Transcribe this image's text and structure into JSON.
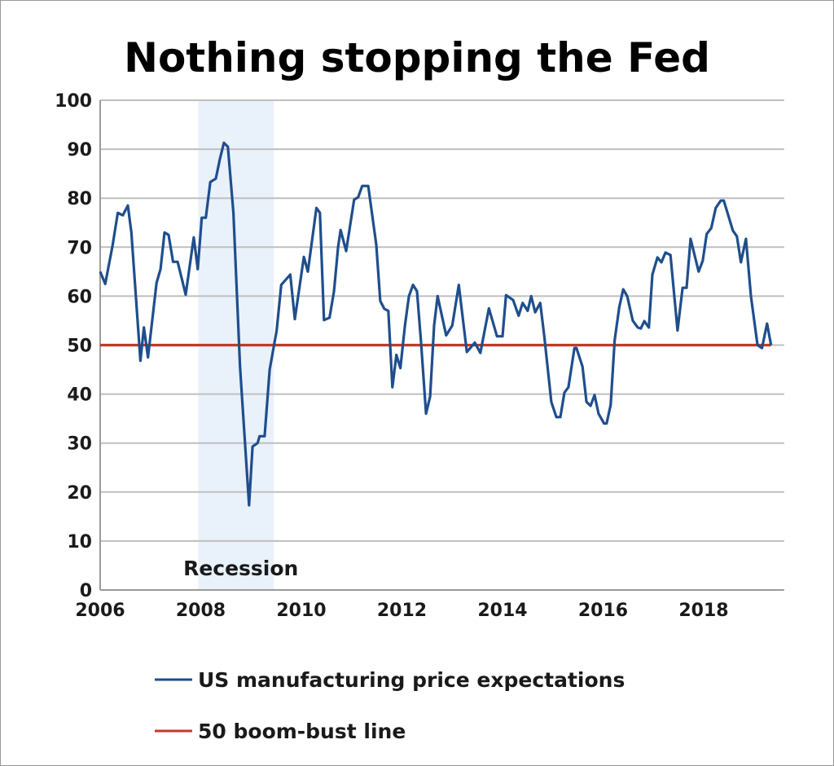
{
  "chart_data": {
    "type": "line",
    "title": "Nothing stopping the Fed",
    "xlabel": "",
    "ylabel": "",
    "xlim": [
      2006,
      2019.6
    ],
    "ylim": [
      0,
      100
    ],
    "x_ticks": [
      "2006",
      "2008",
      "2010",
      "2012",
      "2014",
      "2016",
      "2018"
    ],
    "y_ticks": [
      "0",
      "10",
      "20",
      "30",
      "40",
      "50",
      "60",
      "70",
      "80",
      "90",
      "100"
    ],
    "grid": "horizontal",
    "legend_position": "bottom",
    "shaded_region": {
      "label": "Recession",
      "x": [
        2007.95,
        2009.45
      ],
      "color": "#e9f1fb"
    },
    "series": [
      {
        "name": "US manufacturing price expectations",
        "color": "#1f4e8c",
        "points": [
          [
            2006.0,
            65
          ],
          [
            2006.1,
            62.5
          ],
          [
            2006.25,
            70.5
          ],
          [
            2006.35,
            77
          ],
          [
            2006.45,
            76.5
          ],
          [
            2006.55,
            78.5
          ],
          [
            2006.62,
            73
          ],
          [
            2006.8,
            46.8
          ],
          [
            2006.87,
            53.6
          ],
          [
            2006.95,
            47.5
          ],
          [
            2007.12,
            62.7
          ],
          [
            2007.2,
            65.5
          ],
          [
            2007.28,
            73
          ],
          [
            2007.36,
            72.5
          ],
          [
            2007.45,
            67
          ],
          [
            2007.54,
            67
          ],
          [
            2007.7,
            60.3
          ],
          [
            2007.86,
            72
          ],
          [
            2007.94,
            65.5
          ],
          [
            2008.02,
            76
          ],
          [
            2008.1,
            76
          ],
          [
            2008.19,
            83.3
          ],
          [
            2008.3,
            84
          ],
          [
            2008.38,
            88
          ],
          [
            2008.46,
            91.3
          ],
          [
            2008.54,
            90.5
          ],
          [
            2008.65,
            77
          ],
          [
            2008.78,
            45.6
          ],
          [
            2008.96,
            17.3
          ],
          [
            2009.03,
            29.3
          ],
          [
            2009.13,
            30
          ],
          [
            2009.17,
            31.4
          ],
          [
            2009.27,
            31.4
          ],
          [
            2009.37,
            45
          ],
          [
            2009.51,
            53
          ],
          [
            2009.6,
            62.3
          ],
          [
            2009.78,
            64.4
          ],
          [
            2009.87,
            55.3
          ],
          [
            2010.05,
            68
          ],
          [
            2010.13,
            65
          ],
          [
            2010.3,
            78
          ],
          [
            2010.37,
            77
          ],
          [
            2010.45,
            55.1
          ],
          [
            2010.56,
            55.6
          ],
          [
            2010.65,
            61
          ],
          [
            2010.73,
            70
          ],
          [
            2010.78,
            73.5
          ],
          [
            2010.89,
            69.2
          ],
          [
            2011.05,
            79.7
          ],
          [
            2011.13,
            80.2
          ],
          [
            2011.21,
            82.5
          ],
          [
            2011.33,
            82.5
          ],
          [
            2011.49,
            70.5
          ],
          [
            2011.57,
            59
          ],
          [
            2011.65,
            57.4
          ],
          [
            2011.73,
            57
          ],
          [
            2011.81,
            41.4
          ],
          [
            2011.89,
            48
          ],
          [
            2011.97,
            45.3
          ],
          [
            2012.06,
            54
          ],
          [
            2012.14,
            60
          ],
          [
            2012.22,
            62.3
          ],
          [
            2012.3,
            61
          ],
          [
            2012.38,
            50.5
          ],
          [
            2012.48,
            36
          ],
          [
            2012.56,
            39.5
          ],
          [
            2012.64,
            54
          ],
          [
            2012.71,
            60
          ],
          [
            2012.88,
            52
          ],
          [
            2013.0,
            54
          ],
          [
            2013.13,
            62.3
          ],
          [
            2013.29,
            48.6
          ],
          [
            2013.45,
            50.5
          ],
          [
            2013.56,
            48.4
          ],
          [
            2013.73,
            57.5
          ],
          [
            2013.89,
            51.8
          ],
          [
            2014.0,
            51.8
          ],
          [
            2014.07,
            60.2
          ],
          [
            2014.21,
            59.2
          ],
          [
            2014.32,
            56
          ],
          [
            2014.4,
            58.6
          ],
          [
            2014.5,
            57
          ],
          [
            2014.57,
            60
          ],
          [
            2014.65,
            56.7
          ],
          [
            2014.75,
            58.6
          ],
          [
            2014.83,
            51.8
          ],
          [
            2014.97,
            38.4
          ],
          [
            2015.07,
            35.3
          ],
          [
            2015.15,
            35.3
          ],
          [
            2015.23,
            40.3
          ],
          [
            2015.31,
            41.4
          ],
          [
            2015.43,
            49.4
          ],
          [
            2015.47,
            49.4
          ],
          [
            2015.59,
            45.6
          ],
          [
            2015.67,
            38.4
          ],
          [
            2015.75,
            37.6
          ],
          [
            2015.83,
            39.8
          ],
          [
            2015.91,
            36
          ],
          [
            2016.02,
            34
          ],
          [
            2016.07,
            34
          ],
          [
            2016.15,
            37.8
          ],
          [
            2016.23,
            51
          ],
          [
            2016.32,
            57.7
          ],
          [
            2016.4,
            61.4
          ],
          [
            2016.48,
            60
          ],
          [
            2016.59,
            55
          ],
          [
            2016.69,
            53.6
          ],
          [
            2016.75,
            53.4
          ],
          [
            2016.82,
            54.9
          ],
          [
            2016.91,
            53.6
          ],
          [
            2016.98,
            64.4
          ],
          [
            2017.08,
            67.9
          ],
          [
            2017.16,
            66.9
          ],
          [
            2017.24,
            68.9
          ],
          [
            2017.34,
            68.4
          ],
          [
            2017.48,
            53
          ],
          [
            2017.58,
            61.7
          ],
          [
            2017.66,
            61.7
          ],
          [
            2017.74,
            71.7
          ],
          [
            2017.9,
            65
          ],
          [
            2017.98,
            67.2
          ],
          [
            2018.06,
            72.7
          ],
          [
            2018.15,
            73.9
          ],
          [
            2018.24,
            78
          ],
          [
            2018.34,
            79.5
          ],
          [
            2018.4,
            79.5
          ],
          [
            2018.58,
            73.4
          ],
          [
            2018.66,
            72.2
          ],
          [
            2018.74,
            66.9
          ],
          [
            2018.84,
            71.7
          ],
          [
            2018.94,
            60
          ],
          [
            2019.07,
            50
          ],
          [
            2019.16,
            49.4
          ],
          [
            2019.26,
            54.4
          ],
          [
            2019.34,
            50
          ]
        ]
      },
      {
        "name": "50 boom-bust line",
        "color": "#c0392b",
        "points": [
          [
            2006.0,
            50
          ],
          [
            2019.34,
            50
          ]
        ]
      }
    ]
  }
}
